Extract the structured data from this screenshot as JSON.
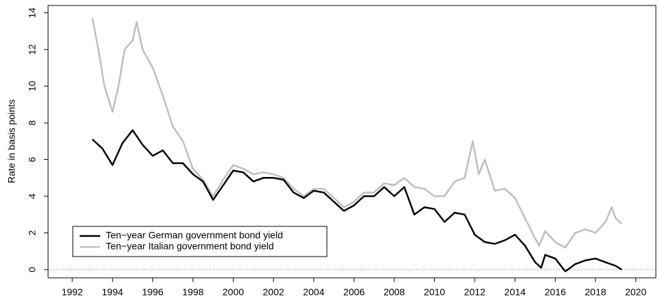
{
  "chart_data": {
    "type": "line",
    "y_label": "Rate in basis points",
    "xlim": [
      1990.8,
      2021.0
    ],
    "ylim": [
      -0.45,
      14.4
    ],
    "xticks": [
      1992,
      1994,
      1996,
      1998,
      2000,
      2002,
      2004,
      2006,
      2008,
      2010,
      2012,
      2014,
      2016,
      2018,
      2020
    ],
    "yticks": [
      0,
      2,
      4,
      6,
      8,
      10,
      12,
      14
    ],
    "reference_line": 0,
    "legend": "bottom-left",
    "series": [
      {
        "name": "Ten−year German government bond yield",
        "color": "#000000",
        "x": [
          1993.0,
          1993.5,
          1994.0,
          1994.5,
          1995.0,
          1995.5,
          1996.0,
          1996.5,
          1997.0,
          1997.5,
          1998.0,
          1998.5,
          1999.0,
          1999.5,
          2000.0,
          2000.5,
          2001.0,
          2001.5,
          2002.0,
          2002.5,
          2003.0,
          2003.5,
          2004.0,
          2004.5,
          2005.0,
          2005.5,
          2006.0,
          2006.5,
          2007.0,
          2007.5,
          2008.0,
          2008.5,
          2009.0,
          2009.5,
          2010.0,
          2010.5,
          2011.0,
          2011.5,
          2012.0,
          2012.5,
          2013.0,
          2013.5,
          2014.0,
          2014.5,
          2015.0,
          2015.3,
          2015.5,
          2016.0,
          2016.5,
          2017.0,
          2017.5,
          2018.0,
          2018.5,
          2019.0,
          2019.3
        ],
        "values": [
          7.1,
          6.6,
          5.7,
          6.9,
          7.6,
          6.8,
          6.2,
          6.5,
          5.8,
          5.8,
          5.2,
          4.8,
          3.8,
          4.6,
          5.4,
          5.3,
          4.8,
          5.0,
          5.0,
          4.9,
          4.2,
          3.9,
          4.3,
          4.2,
          3.7,
          3.2,
          3.5,
          4.0,
          4.0,
          4.5,
          4.0,
          4.5,
          3.0,
          3.4,
          3.3,
          2.6,
          3.1,
          3.0,
          1.9,
          1.5,
          1.4,
          1.6,
          1.9,
          1.3,
          0.4,
          0.1,
          0.8,
          0.6,
          -0.1,
          0.3,
          0.5,
          0.6,
          0.4,
          0.2,
          0.0
        ]
      },
      {
        "name": "Ten−year Italian government bond yield",
        "color": "#bebebe",
        "x": [
          1993.0,
          1993.3,
          1993.6,
          1994.0,
          1994.3,
          1994.6,
          1995.0,
          1995.2,
          1995.5,
          1996.0,
          1996.5,
          1997.0,
          1997.5,
          1998.0,
          1998.5,
          1999.0,
          1999.5,
          2000.0,
          2000.5,
          2001.0,
          2001.5,
          2002.0,
          2002.5,
          2003.0,
          2003.5,
          2004.0,
          2004.5,
          2005.0,
          2005.5,
          2006.0,
          2006.5,
          2007.0,
          2007.5,
          2008.0,
          2008.5,
          2009.0,
          2009.5,
          2010.0,
          2010.5,
          2011.0,
          2011.5,
          2011.9,
          2012.2,
          2012.5,
          2013.0,
          2013.5,
          2014.0,
          2014.5,
          2015.0,
          2015.2,
          2015.5,
          2016.0,
          2016.5,
          2017.0,
          2017.5,
          2018.0,
          2018.5,
          2018.8,
          2019.0,
          2019.3
        ],
        "values": [
          13.7,
          12.0,
          10.0,
          8.6,
          10.0,
          12.0,
          12.5,
          13.5,
          12.0,
          11.0,
          9.5,
          7.8,
          7.0,
          5.5,
          4.9,
          4.0,
          4.9,
          5.7,
          5.5,
          5.2,
          5.3,
          5.2,
          5.0,
          4.4,
          4.0,
          4.4,
          4.4,
          3.9,
          3.4,
          3.7,
          4.2,
          4.2,
          4.7,
          4.6,
          5.0,
          4.5,
          4.4,
          4.0,
          4.0,
          4.8,
          5.0,
          7.0,
          5.2,
          6.0,
          4.3,
          4.4,
          3.9,
          2.8,
          1.7,
          1.3,
          2.1,
          1.5,
          1.2,
          2.0,
          2.2,
          2.0,
          2.6,
          3.4,
          2.8,
          2.5
        ]
      }
    ]
  }
}
